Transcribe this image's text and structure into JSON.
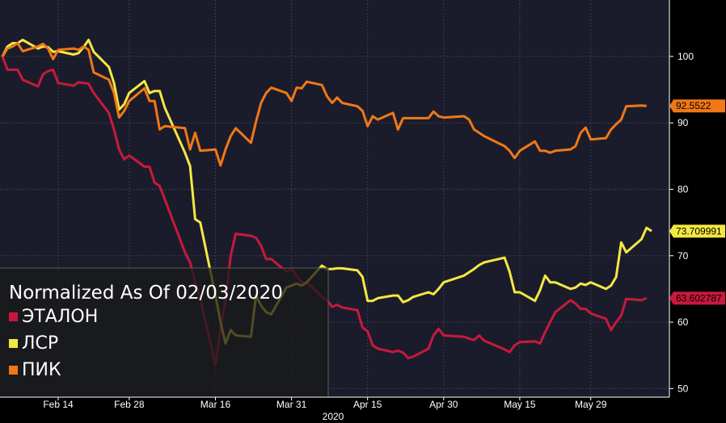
{
  "chart_data": {
    "type": "line",
    "legend": {
      "title": "Normalized As Of 02/03/2020",
      "placement": "bottom-left"
    },
    "x_ticks": [
      {
        "date": "2020-02-14",
        "label": "Feb 14"
      },
      {
        "date": "2020-02-28",
        "label": "Feb 28"
      },
      {
        "date": "2020-03-16",
        "label": "Mar 16"
      },
      {
        "date": "2020-03-31",
        "label": "Mar 31"
      },
      {
        "date": "2020-04-15",
        "label": "Apr 15"
      },
      {
        "date": "2020-04-30",
        "label": "Apr 30"
      },
      {
        "date": "2020-05-15",
        "label": "May 15"
      },
      {
        "date": "2020-05-29",
        "label": "May 29"
      }
    ],
    "year_label": "2020",
    "y_ticks": [
      50,
      60,
      70,
      80,
      90,
      100
    ],
    "ylim": [
      48.7,
      108.5
    ],
    "xlim": [
      "2020-02-03",
      "2020-06-10"
    ],
    "grid": true,
    "series": [
      {
        "name": "ЭТАЛОН",
        "color": "#c8193c",
        "end_label": "63.602787",
        "points": [
          [
            "2020-02-03",
            100
          ],
          [
            "2020-02-04",
            98
          ],
          [
            "2020-02-05",
            98
          ],
          [
            "2020-02-06",
            98
          ],
          [
            "2020-02-07",
            96.5
          ],
          [
            "2020-02-10",
            95.5
          ],
          [
            "2020-02-11",
            97.3
          ],
          [
            "2020-02-12",
            97.8
          ],
          [
            "2020-02-13",
            98
          ],
          [
            "2020-02-14",
            96
          ],
          [
            "2020-02-17",
            95.6
          ],
          [
            "2020-02-18",
            96.1
          ],
          [
            "2020-02-19",
            96
          ],
          [
            "2020-02-20",
            95.9
          ],
          [
            "2020-02-21",
            94.5
          ],
          [
            "2020-02-24",
            91.5
          ],
          [
            "2020-02-25",
            89
          ],
          [
            "2020-02-26",
            86
          ],
          [
            "2020-02-27",
            84.5
          ],
          [
            "2020-02-28",
            85.1
          ],
          [
            "2020-03-02",
            83.4
          ],
          [
            "2020-03-03",
            83.4
          ],
          [
            "2020-03-04",
            81
          ],
          [
            "2020-03-05",
            80.5
          ],
          [
            "2020-03-06",
            78.5
          ],
          [
            "2020-03-10",
            70.5
          ],
          [
            "2020-03-11",
            69
          ],
          [
            "2020-03-12",
            66
          ],
          [
            "2020-03-13",
            63.5
          ],
          [
            "2020-03-16",
            53.5
          ],
          [
            "2020-03-17",
            59
          ],
          [
            "2020-03-18",
            63.3
          ],
          [
            "2020-03-19",
            70
          ],
          [
            "2020-03-20",
            73.3
          ],
          [
            "2020-03-23",
            73
          ],
          [
            "2020-03-24",
            72.7
          ],
          [
            "2020-03-25",
            71.5
          ],
          [
            "2020-03-26",
            69.5
          ],
          [
            "2020-03-27",
            69.5
          ],
          [
            "2020-03-30",
            67.6
          ],
          [
            "2020-03-31",
            68
          ],
          [
            "2020-04-01",
            67
          ],
          [
            "2020-04-02",
            66
          ],
          [
            "2020-04-03",
            66
          ],
          [
            "2020-04-06",
            63.8
          ],
          [
            "2020-04-07",
            63.3
          ],
          [
            "2020-04-08",
            62.3
          ],
          [
            "2020-04-09",
            62.6
          ],
          [
            "2020-04-10",
            62.2
          ],
          [
            "2020-04-13",
            61.8
          ],
          [
            "2020-04-14",
            59.2
          ],
          [
            "2020-04-15",
            58.6
          ],
          [
            "2020-04-16",
            56.5
          ],
          [
            "2020-04-17",
            56
          ],
          [
            "2020-04-20",
            55.5
          ],
          [
            "2020-04-21",
            55.7
          ],
          [
            "2020-04-22",
            55.4
          ],
          [
            "2020-04-23",
            54.6
          ],
          [
            "2020-04-24",
            54.8
          ],
          [
            "2020-04-27",
            56
          ],
          [
            "2020-04-28",
            58
          ],
          [
            "2020-04-29",
            59
          ],
          [
            "2020-04-30",
            58
          ],
          [
            "2020-05-04",
            57.8
          ],
          [
            "2020-05-05",
            57.5
          ],
          [
            "2020-05-06",
            57.3
          ],
          [
            "2020-05-07",
            58
          ],
          [
            "2020-05-08",
            57.2
          ],
          [
            "2020-05-12",
            55.9
          ],
          [
            "2020-05-13",
            55.5
          ],
          [
            "2020-05-14",
            56.5
          ],
          [
            "2020-05-15",
            57
          ],
          [
            "2020-05-18",
            57.1
          ],
          [
            "2020-05-19",
            56.8
          ],
          [
            "2020-05-20",
            58.5
          ],
          [
            "2020-05-21",
            60
          ],
          [
            "2020-05-22",
            61.5
          ],
          [
            "2020-05-25",
            63.3
          ],
          [
            "2020-05-26",
            62.8
          ],
          [
            "2020-05-27",
            62
          ],
          [
            "2020-05-28",
            62
          ],
          [
            "2020-05-29",
            61.3
          ],
          [
            "2020-06-01",
            60.5
          ],
          [
            "2020-06-02",
            58.8
          ],
          [
            "2020-06-03",
            60
          ],
          [
            "2020-06-04",
            61
          ],
          [
            "2020-06-05",
            63.5
          ],
          [
            "2020-06-08",
            63.3
          ],
          [
            "2020-06-09",
            63.6
          ]
        ]
      },
      {
        "name": "ЛСР",
        "color": "#f4e842",
        "end_label": "73.709991",
        "points": [
          [
            "2020-02-03",
            100
          ],
          [
            "2020-02-04",
            101.5
          ],
          [
            "2020-02-05",
            102
          ],
          [
            "2020-02-06",
            102
          ],
          [
            "2020-02-07",
            102.5
          ],
          [
            "2020-02-10",
            101.2
          ],
          [
            "2020-02-11",
            101.5
          ],
          [
            "2020-02-12",
            101.4
          ],
          [
            "2020-02-13",
            100.7
          ],
          [
            "2020-02-14",
            100.8
          ],
          [
            "2020-02-17",
            100.3
          ],
          [
            "2020-02-18",
            100.5
          ],
          [
            "2020-02-19",
            101.4
          ],
          [
            "2020-02-20",
            102.5
          ],
          [
            "2020-02-21",
            100.7
          ],
          [
            "2020-02-24",
            98.4
          ],
          [
            "2020-02-25",
            96
          ],
          [
            "2020-02-26",
            92
          ],
          [
            "2020-02-27",
            92.8
          ],
          [
            "2020-02-28",
            94.5
          ],
          [
            "2020-03-02",
            96.3
          ],
          [
            "2020-03-03",
            94.5
          ],
          [
            "2020-03-04",
            94.8
          ],
          [
            "2020-03-05",
            94.8
          ],
          [
            "2020-03-06",
            92.3
          ],
          [
            "2020-03-10",
            85.5
          ],
          [
            "2020-03-11",
            83.5
          ],
          [
            "2020-03-12",
            75.5
          ],
          [
            "2020-03-13",
            75
          ],
          [
            "2020-03-16",
            64
          ],
          [
            "2020-03-17",
            60
          ],
          [
            "2020-03-18",
            56.8
          ],
          [
            "2020-03-19",
            58.8
          ],
          [
            "2020-03-20",
            58
          ],
          [
            "2020-03-23",
            57.8
          ],
          [
            "2020-03-24",
            64
          ],
          [
            "2020-03-25",
            62.5
          ],
          [
            "2020-03-26",
            61.5
          ],
          [
            "2020-03-27",
            61.2
          ],
          [
            "2020-03-30",
            65.2
          ],
          [
            "2020-03-31",
            65.5
          ],
          [
            "2020-04-01",
            65.8
          ],
          [
            "2020-04-02",
            65.5
          ],
          [
            "2020-04-03",
            66
          ],
          [
            "2020-04-06",
            68.5
          ],
          [
            "2020-04-07",
            68
          ],
          [
            "2020-04-08",
            68
          ],
          [
            "2020-04-09",
            68.1
          ],
          [
            "2020-04-10",
            68.1
          ],
          [
            "2020-04-13",
            67.8
          ],
          [
            "2020-04-14",
            66.8
          ],
          [
            "2020-04-15",
            63.2
          ],
          [
            "2020-04-16",
            63.2
          ],
          [
            "2020-04-17",
            63.6
          ],
          [
            "2020-04-20",
            64
          ],
          [
            "2020-04-21",
            64
          ],
          [
            "2020-04-22",
            63
          ],
          [
            "2020-04-23",
            63.3
          ],
          [
            "2020-04-24",
            63.8
          ],
          [
            "2020-04-27",
            64.5
          ],
          [
            "2020-04-28",
            64.2
          ],
          [
            "2020-04-29",
            65
          ],
          [
            "2020-04-30",
            66
          ],
          [
            "2020-05-04",
            67
          ],
          [
            "2020-05-05",
            67.5
          ],
          [
            "2020-05-06",
            68
          ],
          [
            "2020-05-07",
            68.6
          ],
          [
            "2020-05-08",
            69
          ],
          [
            "2020-05-12",
            69.7
          ],
          [
            "2020-05-13",
            67.6
          ],
          [
            "2020-05-14",
            64.5
          ],
          [
            "2020-05-15",
            64.5
          ],
          [
            "2020-05-18",
            63.2
          ],
          [
            "2020-05-19",
            64.8
          ],
          [
            "2020-05-20",
            67
          ],
          [
            "2020-05-21",
            66
          ],
          [
            "2020-05-22",
            66
          ],
          [
            "2020-05-25",
            65
          ],
          [
            "2020-05-26",
            65.2
          ],
          [
            "2020-05-27",
            65.8
          ],
          [
            "2020-05-28",
            65.6
          ],
          [
            "2020-05-29",
            66
          ],
          [
            "2020-06-01",
            65
          ],
          [
            "2020-06-02",
            65.5
          ],
          [
            "2020-06-03",
            66.8
          ],
          [
            "2020-06-04",
            72
          ],
          [
            "2020-06-05",
            70.5
          ],
          [
            "2020-06-08",
            72.5
          ],
          [
            "2020-06-09",
            74.2
          ],
          [
            "2020-06-10",
            73.7
          ]
        ]
      },
      {
        "name": "ПИК",
        "color": "#f07818",
        "end_label": "92.5522",
        "points": [
          [
            "2020-02-03",
            100
          ],
          [
            "2020-02-04",
            101.2
          ],
          [
            "2020-02-05",
            101.5
          ],
          [
            "2020-02-06",
            102
          ],
          [
            "2020-02-07",
            100.8
          ],
          [
            "2020-02-10",
            101.5
          ],
          [
            "2020-02-11",
            101.9
          ],
          [
            "2020-02-12",
            101.2
          ],
          [
            "2020-02-13",
            99.6
          ],
          [
            "2020-02-14",
            101
          ],
          [
            "2020-02-17",
            101.2
          ],
          [
            "2020-02-18",
            101
          ],
          [
            "2020-02-19",
            101.5
          ],
          [
            "2020-02-20",
            101
          ],
          [
            "2020-02-21",
            97.6
          ],
          [
            "2020-02-24",
            96.5
          ],
          [
            "2020-02-25",
            94.5
          ],
          [
            "2020-02-26",
            90.8
          ],
          [
            "2020-02-27",
            91.8
          ],
          [
            "2020-02-28",
            93.3
          ],
          [
            "2020-03-02",
            95.2
          ],
          [
            "2020-03-03",
            93.3
          ],
          [
            "2020-03-04",
            93.3
          ],
          [
            "2020-03-05",
            89
          ],
          [
            "2020-03-06",
            89.5
          ],
          [
            "2020-03-10",
            89.2
          ],
          [
            "2020-03-11",
            86
          ],
          [
            "2020-03-12",
            88.5
          ],
          [
            "2020-03-13",
            85.8
          ],
          [
            "2020-03-16",
            86
          ],
          [
            "2020-03-17",
            83.6
          ],
          [
            "2020-03-18",
            86
          ],
          [
            "2020-03-19",
            88
          ],
          [
            "2020-03-20",
            89.2
          ],
          [
            "2020-03-23",
            87
          ],
          [
            "2020-03-24",
            90.2
          ],
          [
            "2020-03-25",
            93
          ],
          [
            "2020-03-26",
            94.5
          ],
          [
            "2020-03-27",
            95.3
          ],
          [
            "2020-03-30",
            94.5
          ],
          [
            "2020-03-31",
            93.3
          ],
          [
            "2020-04-01",
            95.3
          ],
          [
            "2020-04-02",
            95.2
          ],
          [
            "2020-04-03",
            96.2
          ],
          [
            "2020-04-06",
            95.7
          ],
          [
            "2020-04-07",
            94
          ],
          [
            "2020-04-08",
            93
          ],
          [
            "2020-04-09",
            93.8
          ],
          [
            "2020-04-10",
            93
          ],
          [
            "2020-04-13",
            92.5
          ],
          [
            "2020-04-14",
            91.8
          ],
          [
            "2020-04-15",
            89.5
          ],
          [
            "2020-04-16",
            91
          ],
          [
            "2020-04-17",
            90.5
          ],
          [
            "2020-04-20",
            91.5
          ],
          [
            "2020-04-21",
            89
          ],
          [
            "2020-04-22",
            90.7
          ],
          [
            "2020-04-23",
            90.7
          ],
          [
            "2020-04-24",
            90.7
          ],
          [
            "2020-04-27",
            90.7
          ],
          [
            "2020-04-28",
            91.7
          ],
          [
            "2020-04-29",
            91
          ],
          [
            "2020-04-30",
            90.8
          ],
          [
            "2020-05-04",
            91
          ],
          [
            "2020-05-05",
            90.5
          ],
          [
            "2020-05-06",
            89
          ],
          [
            "2020-05-07",
            88.5
          ],
          [
            "2020-05-08",
            88
          ],
          [
            "2020-05-12",
            86.5
          ],
          [
            "2020-05-13",
            85.8
          ],
          [
            "2020-05-14",
            84.7
          ],
          [
            "2020-05-15",
            85.8
          ],
          [
            "2020-05-18",
            87.2
          ],
          [
            "2020-05-19",
            85.8
          ],
          [
            "2020-05-20",
            85.8
          ],
          [
            "2020-05-21",
            85.5
          ],
          [
            "2020-05-22",
            85.8
          ],
          [
            "2020-05-25",
            86
          ],
          [
            "2020-05-26",
            86.5
          ],
          [
            "2020-05-27",
            88.5
          ],
          [
            "2020-05-28",
            89.3
          ],
          [
            "2020-05-29",
            87.5
          ],
          [
            "2020-06-01",
            87.7
          ],
          [
            "2020-06-02",
            89
          ],
          [
            "2020-06-03",
            89.8
          ],
          [
            "2020-06-04",
            90.5
          ],
          [
            "2020-06-05",
            92.5
          ],
          [
            "2020-06-08",
            92.6
          ],
          [
            "2020-06-09",
            92.55
          ]
        ]
      }
    ]
  },
  "colors": {
    "background": "#000000",
    "plot_background": "#1b1c2b",
    "grid": "#3c3d4d",
    "legend_overlay": "#1a1a1a"
  }
}
